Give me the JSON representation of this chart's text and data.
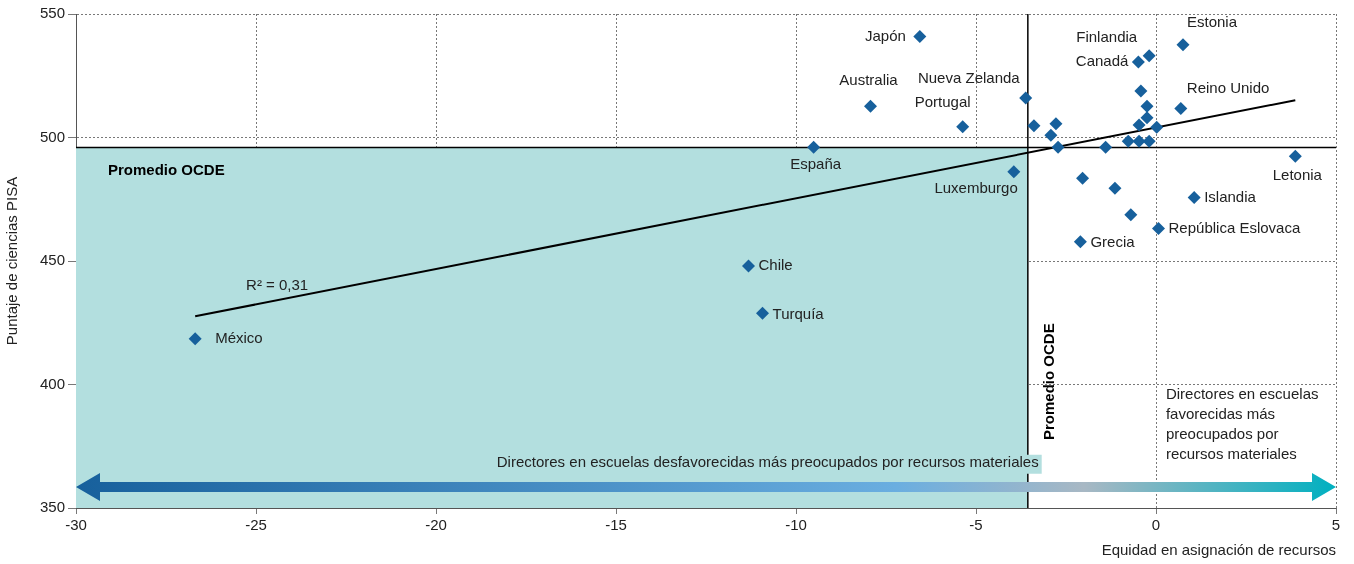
{
  "chart_data": {
    "type": "scatter",
    "xlabel": "Equidad en asignación de recursos",
    "ylabel": "Puntaje de ciencias PISA",
    "xlim": [
      -30,
      5
    ],
    "xticks": [
      -30,
      -25,
      -20,
      -15,
      -10,
      -5,
      0,
      5
    ],
    "ylim": [
      350,
      550
    ],
    "yticks": [
      350,
      400,
      450,
      500,
      550
    ],
    "grid": true,
    "legend": false,
    "series": [
      {
        "marker": "diamond",
        "color": "#17609c",
        "x": [
          -6.56,
          -7.93,
          -5.37,
          -3.62,
          -9.51,
          -3.95,
          -11.32,
          -10.93,
          -26.69,
          0.75,
          -0.19,
          -0.49,
          -0.42,
          -0.25,
          0.69,
          -3.39,
          -2.78,
          -0.25,
          -0.47,
          0.02,
          -2.92,
          -2.72,
          -1.4,
          -0.77,
          -0.47,
          -0.19,
          3.87,
          -2.04,
          -1.14,
          1.06,
          -0.7,
          0.07,
          -2.1
        ],
        "values": [
          540.9,
          512.7,
          504.4,
          516.0,
          496.1,
          486.1,
          448.0,
          428.8,
          418.5,
          537.6,
          533.1,
          530.6,
          518.8,
          512.7,
          511.7,
          504.8,
          505.6,
          508.0,
          505.1,
          504.1,
          500.9,
          496.1,
          496.1,
          498.5,
          498.5,
          498.5,
          492.4,
          483.5,
          479.5,
          475.7,
          468.7,
          463.2,
          457.8
        ]
      },
      {
        "type": "line",
        "marker": "none",
        "color": "#000000",
        "x": [
          -26.69,
          3.87
        ],
        "values": [
          427.6,
          515.1
        ]
      }
    ],
    "ref_lines": [
      {
        "axis": "y",
        "value": 496,
        "label": "Promedio OCDE",
        "color": "#000000"
      },
      {
        "axis": "x",
        "value": -3.56,
        "label": "Promedio OCDE",
        "color": "#000000"
      }
    ],
    "bands": [
      {
        "axis": "x",
        "from": -30,
        "to": -3.56,
        "color": "#b3dfdf"
      }
    ],
    "annotations": [
      "R² = 0,31",
      "Directores en escuelas desfavorecidas más preocupados por recursos materiales",
      "Directores en escuelas favorecidas más preocupados por recursos materiales",
      {
        "text": "Japón",
        "x": -6.56,
        "y": 540.9
      },
      {
        "text": "Australia",
        "x": -7.93,
        "y": 512.7
      },
      {
        "text": "Portugal",
        "x": -5.37,
        "y": 504.4
      },
      {
        "text": "Nueva Zelanda",
        "x": -3.62,
        "y": 516.0
      },
      {
        "text": "España",
        "x": -9.51,
        "y": 496.1
      },
      {
        "text": "Luxemburgo",
        "x": -3.95,
        "y": 486.1
      },
      {
        "text": "Chile",
        "x": -11.32,
        "y": 448.0
      },
      {
        "text": "Turquía",
        "x": -10.93,
        "y": 428.8
      },
      {
        "text": "México",
        "x": -26.69,
        "y": 418.5
      },
      {
        "text": "Estonia",
        "x": 0.75,
        "y": 537.6
      },
      {
        "text": "Finlandia",
        "x": -0.19,
        "y": 533.1
      },
      {
        "text": "Canadá",
        "x": -0.49,
        "y": 530.6
      },
      {
        "text": "Reino Unido",
        "x": 0.69,
        "y": 511.7
      },
      {
        "text": "Letonia",
        "x": 3.87,
        "y": 492.4
      },
      {
        "text": "Islandia",
        "x": 1.06,
        "y": 475.7
      },
      {
        "text": "República Eslovaca",
        "x": 0.07,
        "y": 463.2
      },
      {
        "text": "Grecia",
        "x": -2.1,
        "y": 457.8
      }
    ]
  }
}
